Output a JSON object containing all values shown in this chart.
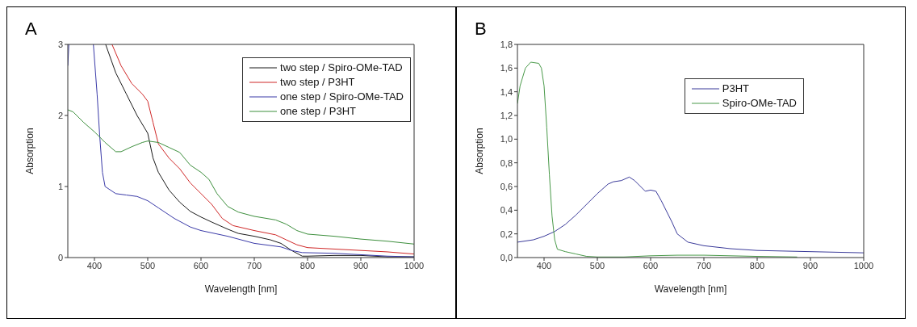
{
  "chart_data": [
    {
      "type": "line",
      "title": "A",
      "xlabel": "Wavelength [nm]",
      "ylabel": "Absorption",
      "xlim": [
        350,
        1000
      ],
      "xticks": [
        400,
        500,
        600,
        700,
        800,
        900,
        1000
      ],
      "ylim": [
        0,
        3
      ],
      "yticks": [
        0,
        1,
        2,
        3
      ],
      "legend": "top right",
      "marker": "none",
      "line_style": "solid",
      "series": [
        {
          "name": "two step / Spiro-OMe-TAD",
          "color": "#1a1a1a",
          "x": [
            421,
            440,
            460,
            480,
            500,
            510,
            520,
            540,
            560,
            580,
            600,
            620,
            650,
            670,
            700,
            730,
            750,
            770,
            790,
            800,
            850,
            900,
            950,
            1000
          ],
          "values": [
            3,
            2.6,
            2.3,
            2.0,
            1.75,
            1.4,
            1.2,
            0.95,
            0.78,
            0.65,
            0.57,
            0.5,
            0.4,
            0.34,
            0.3,
            0.25,
            0.2,
            0.1,
            0.02,
            0.02,
            0.03,
            0.03,
            0.01,
            0.01
          ]
        },
        {
          "name": "two step / P3HT",
          "color": "#d02828",
          "x": [
            433,
            450,
            470,
            490,
            500,
            510,
            520,
            540,
            560,
            580,
            600,
            620,
            640,
            660,
            700,
            740,
            760,
            780,
            800,
            850,
            900,
            950,
            1000
          ],
          "values": [
            3,
            2.7,
            2.45,
            2.3,
            2.2,
            1.9,
            1.6,
            1.4,
            1.25,
            1.05,
            0.9,
            0.75,
            0.55,
            0.45,
            0.38,
            0.32,
            0.25,
            0.18,
            0.14,
            0.12,
            0.1,
            0.08,
            0.05
          ]
        },
        {
          "name": "one step / Spiro-OMe-TAD",
          "color": "#3a3aa8",
          "x": [
            350,
            352,
            375,
            398,
            405,
            410,
            415,
            420,
            440,
            460,
            480,
            500,
            520,
            550,
            580,
            600,
            650,
            700,
            750,
            770,
            790,
            850,
            900,
            950,
            1000
          ],
          "values": [
            2.7,
            3,
            null,
            3,
            2.3,
            1.7,
            1.2,
            1.0,
            0.9,
            0.88,
            0.86,
            0.8,
            0.7,
            0.55,
            0.43,
            0.38,
            0.3,
            0.2,
            0.15,
            0.1,
            0.07,
            0.06,
            0.04,
            0.02,
            0.01
          ]
        },
        {
          "name": "one step / P3HT",
          "color": "#3d8f3d",
          "x": [
            350,
            360,
            380,
            400,
            420,
            440,
            450,
            470,
            490,
            500,
            520,
            540,
            560,
            580,
            600,
            615,
            630,
            650,
            670,
            700,
            740,
            760,
            780,
            800,
            850,
            900,
            950,
            1000
          ],
          "values": [
            2.08,
            2.05,
            1.9,
            1.77,
            1.62,
            1.49,
            1.49,
            1.56,
            1.62,
            1.64,
            1.62,
            1.55,
            1.48,
            1.3,
            1.2,
            1.1,
            0.9,
            0.72,
            0.64,
            0.58,
            0.53,
            0.47,
            0.38,
            0.33,
            0.3,
            0.26,
            0.23,
            0.19
          ]
        }
      ]
    },
    {
      "type": "line",
      "title": "B",
      "xlabel": "Wavelength [nm]",
      "ylabel": "Absorption",
      "xlim": [
        350,
        1000
      ],
      "xticks": [
        400,
        500,
        600,
        700,
        800,
        900,
        1000
      ],
      "ylim": [
        0,
        1.8
      ],
      "yticks": [
        {
          "value": 0,
          "label": "0,0"
        },
        {
          "value": 0.2,
          "label": "0,2"
        },
        {
          "value": 0.4,
          "label": "0,4"
        },
        {
          "value": 0.6,
          "label": "0,6"
        },
        {
          "value": 0.8,
          "label": "0,8"
        },
        {
          "value": 1.0,
          "label": "1,0"
        },
        {
          "value": 1.2,
          "label": "1,2"
        },
        {
          "value": 1.4,
          "label": "1,4"
        },
        {
          "value": 1.6,
          "label": "1,6"
        },
        {
          "value": 1.8,
          "label": "1,8"
        }
      ],
      "legend": "top right",
      "marker": "none",
      "line_style": "solid",
      "series": [
        {
          "name": "P3HT",
          "color": "#3a3a9a",
          "x": [
            350,
            380,
            400,
            420,
            440,
            460,
            480,
            500,
            520,
            530,
            545,
            560,
            570,
            590,
            600,
            610,
            620,
            640,
            650,
            670,
            700,
            750,
            800,
            900,
            1000
          ],
          "values": [
            0.13,
            0.15,
            0.18,
            0.22,
            0.28,
            0.36,
            0.45,
            0.54,
            0.62,
            0.64,
            0.65,
            0.68,
            0.65,
            0.56,
            0.57,
            0.56,
            0.48,
            0.3,
            0.2,
            0.13,
            0.1,
            0.075,
            0.06,
            0.05,
            0.04
          ]
        },
        {
          "name": "Spiro-OMe-TAD",
          "color": "#4a9a4a",
          "x": [
            350,
            355,
            365,
            375,
            390,
            395,
            400,
            405,
            410,
            415,
            420,
            425,
            440,
            460,
            480,
            500,
            550,
            600,
            650,
            700,
            750,
            800,
            875
          ],
          "values": [
            1.3,
            1.45,
            1.6,
            1.65,
            1.64,
            1.6,
            1.45,
            1.1,
            0.7,
            0.35,
            0.15,
            0.07,
            0.05,
            0.03,
            0.01,
            0.005,
            0.005,
            0.015,
            0.02,
            0.02,
            0.015,
            0.01,
            0.005
          ]
        }
      ]
    }
  ]
}
